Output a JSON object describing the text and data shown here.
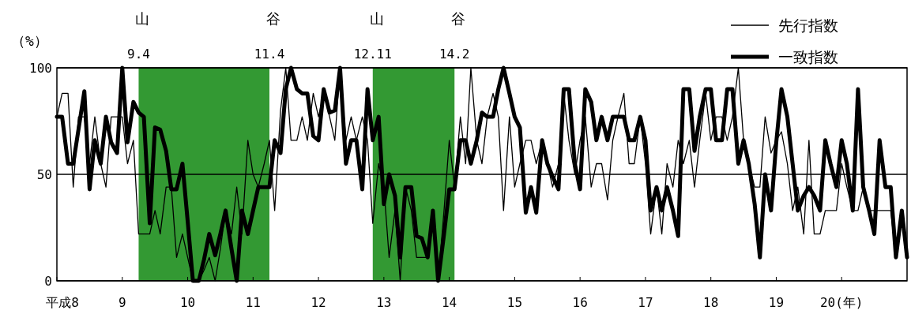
{
  "chart_data": {
    "type": "line",
    "ylabel": "（%）",
    "x": [
      8,
      8.08,
      8.17,
      8.25,
      8.33,
      8.42,
      8.5,
      8.58,
      8.67,
      8.75,
      8.83,
      8.92,
      9,
      9.08,
      9.17,
      9.25,
      9.33,
      9.42,
      9.5,
      9.58,
      9.67,
      9.75,
      9.83,
      9.92,
      10,
      10.08,
      10.17,
      10.25,
      10.33,
      10.42,
      10.5,
      10.58,
      10.67,
      10.75,
      10.83,
      10.92,
      11,
      11.08,
      11.17,
      11.25,
      11.33,
      11.42,
      11.5,
      11.58,
      11.67,
      11.75,
      11.83,
      11.92,
      12,
      12.08,
      12.17,
      12.25,
      12.33,
      12.42,
      12.5,
      12.58,
      12.67,
      12.75,
      12.83,
      12.92,
      13,
      13.08,
      13.17,
      13.25,
      13.33,
      13.42,
      13.5,
      13.58,
      13.67,
      13.75,
      13.83,
      13.92,
      14,
      14.08,
      14.17,
      14.25,
      14.33,
      14.42,
      14.5,
      14.58,
      14.67,
      14.75,
      14.83,
      14.92,
      15,
      15.08,
      15.17,
      15.25,
      15.33,
      15.42,
      15.5,
      15.58,
      15.67,
      15.75,
      15.83,
      15.92,
      16,
      16.08,
      16.17,
      16.25,
      16.33,
      16.42,
      16.5,
      16.58,
      16.67,
      16.75,
      16.83,
      16.92,
      17,
      17.08,
      17.17,
      17.25,
      17.33,
      17.42,
      17.5,
      17.58,
      17.67,
      17.75,
      17.83,
      17.92,
      18,
      18.08,
      18.17,
      18.25,
      18.33,
      18.42,
      18.5,
      18.58,
      18.67,
      18.75,
      18.83,
      18.92,
      19,
      19.08,
      19.17,
      19.25,
      19.33,
      19.42,
      19.5,
      19.58,
      19.67,
      19.75,
      19.83,
      19.92,
      20,
      20.08,
      20.17,
      20.25,
      20.33,
      20.42,
      20.5,
      20.58,
      20.67,
      20.75,
      20.83,
      20.92,
      21
    ],
    "series": [
      {
        "name": "先行指数",
        "color": "#000000",
        "values": [
          77,
          88,
          88,
          44,
          77,
          77,
          55,
          77,
          55,
          44,
          77,
          77,
          77,
          55,
          66,
          22,
          22,
          22,
          33,
          22,
          44,
          44,
          11,
          22,
          11,
          0,
          0,
          5,
          11,
          0,
          15,
          33,
          22,
          44,
          22,
          66,
          50,
          44,
          55,
          66,
          33,
          80,
          100,
          66,
          66,
          77,
          66,
          88,
          77,
          88,
          77,
          66,
          100,
          66,
          77,
          66,
          77,
          66,
          27,
          55,
          44,
          11,
          33,
          0,
          44,
          33,
          11,
          11,
          11,
          33,
          0,
          33,
          66,
          44,
          77,
          55,
          100,
          66,
          55,
          77,
          88,
          77,
          33,
          77,
          44,
          55,
          66,
          66,
          55,
          66,
          55,
          44,
          55,
          88,
          66,
          50,
          66,
          77,
          44,
          55,
          55,
          38,
          66,
          77,
          88,
          55,
          55,
          77,
          55,
          22,
          44,
          22,
          55,
          44,
          66,
          55,
          66,
          44,
          66,
          88,
          66,
          77,
          77,
          66,
          77,
          100,
          66,
          55,
          44,
          44,
          77,
          60,
          66,
          70,
          55,
          33,
          44,
          22,
          66,
          22,
          22,
          33,
          33,
          33,
          55,
          44,
          33,
          33,
          44,
          33,
          33,
          33,
          33,
          33,
          11,
          33,
          11
        ]
      },
      {
        "name": "一致指数",
        "color": "#000000",
        "values": [
          77,
          77,
          55,
          55,
          71,
          89,
          43,
          66,
          55,
          77,
          65,
          60,
          100,
          65,
          84,
          79,
          77,
          27,
          72,
          71,
          61,
          43,
          43,
          55,
          28,
          0,
          0,
          10,
          22,
          12,
          22,
          33,
          15,
          0,
          33,
          22,
          33,
          44,
          44,
          44,
          66,
          60,
          90,
          100,
          90,
          88,
          88,
          68,
          66,
          90,
          79,
          80,
          100,
          55,
          66,
          66,
          43,
          90,
          66,
          77,
          36,
          50,
          40,
          11,
          44,
          44,
          21,
          20,
          11,
          33,
          0,
          22,
          43,
          43,
          66,
          66,
          55,
          66,
          79,
          77,
          77,
          90,
          100,
          88,
          77,
          72,
          32,
          44,
          32,
          66,
          55,
          49,
          43,
          90,
          90,
          55,
          43,
          90,
          84,
          66,
          77,
          66,
          77,
          77,
          77,
          66,
          66,
          77,
          66,
          33,
          44,
          33,
          44,
          33,
          21,
          90,
          90,
          61,
          77,
          90,
          90,
          66,
          66,
          90,
          90,
          55,
          66,
          55,
          36,
          11,
          50,
          33,
          65,
          90,
          77,
          55,
          33,
          40,
          44,
          40,
          33,
          66,
          55,
          44,
          66,
          55,
          33,
          90,
          44,
          33,
          22,
          66,
          44,
          44,
          11,
          33,
          11
        ]
      }
    ],
    "xlim": [
      8,
      21
    ],
    "xticks": [
      {
        "value": 8,
        "label": "平成8"
      },
      9,
      10,
      11,
      12,
      13,
      14,
      15,
      16,
      17,
      18,
      19,
      {
        "value": 20,
        "label": "20(年)"
      }
    ],
    "ylim": [
      0,
      100
    ],
    "yticks": [
      0,
      50,
      100
    ],
    "grid": "y",
    "legend": "top right",
    "bands": [
      {
        "axis": "x",
        "from": 9.25,
        "to": 11.25,
        "color": "#339933"
      },
      {
        "axis": "x",
        "from": 12.83,
        "to": 14.08,
        "color": "#339933"
      }
    ],
    "annotations": [
      "山",
      "9.4",
      "谷",
      "11.4",
      "山",
      "12.11",
      "谷",
      "14.2"
    ]
  }
}
